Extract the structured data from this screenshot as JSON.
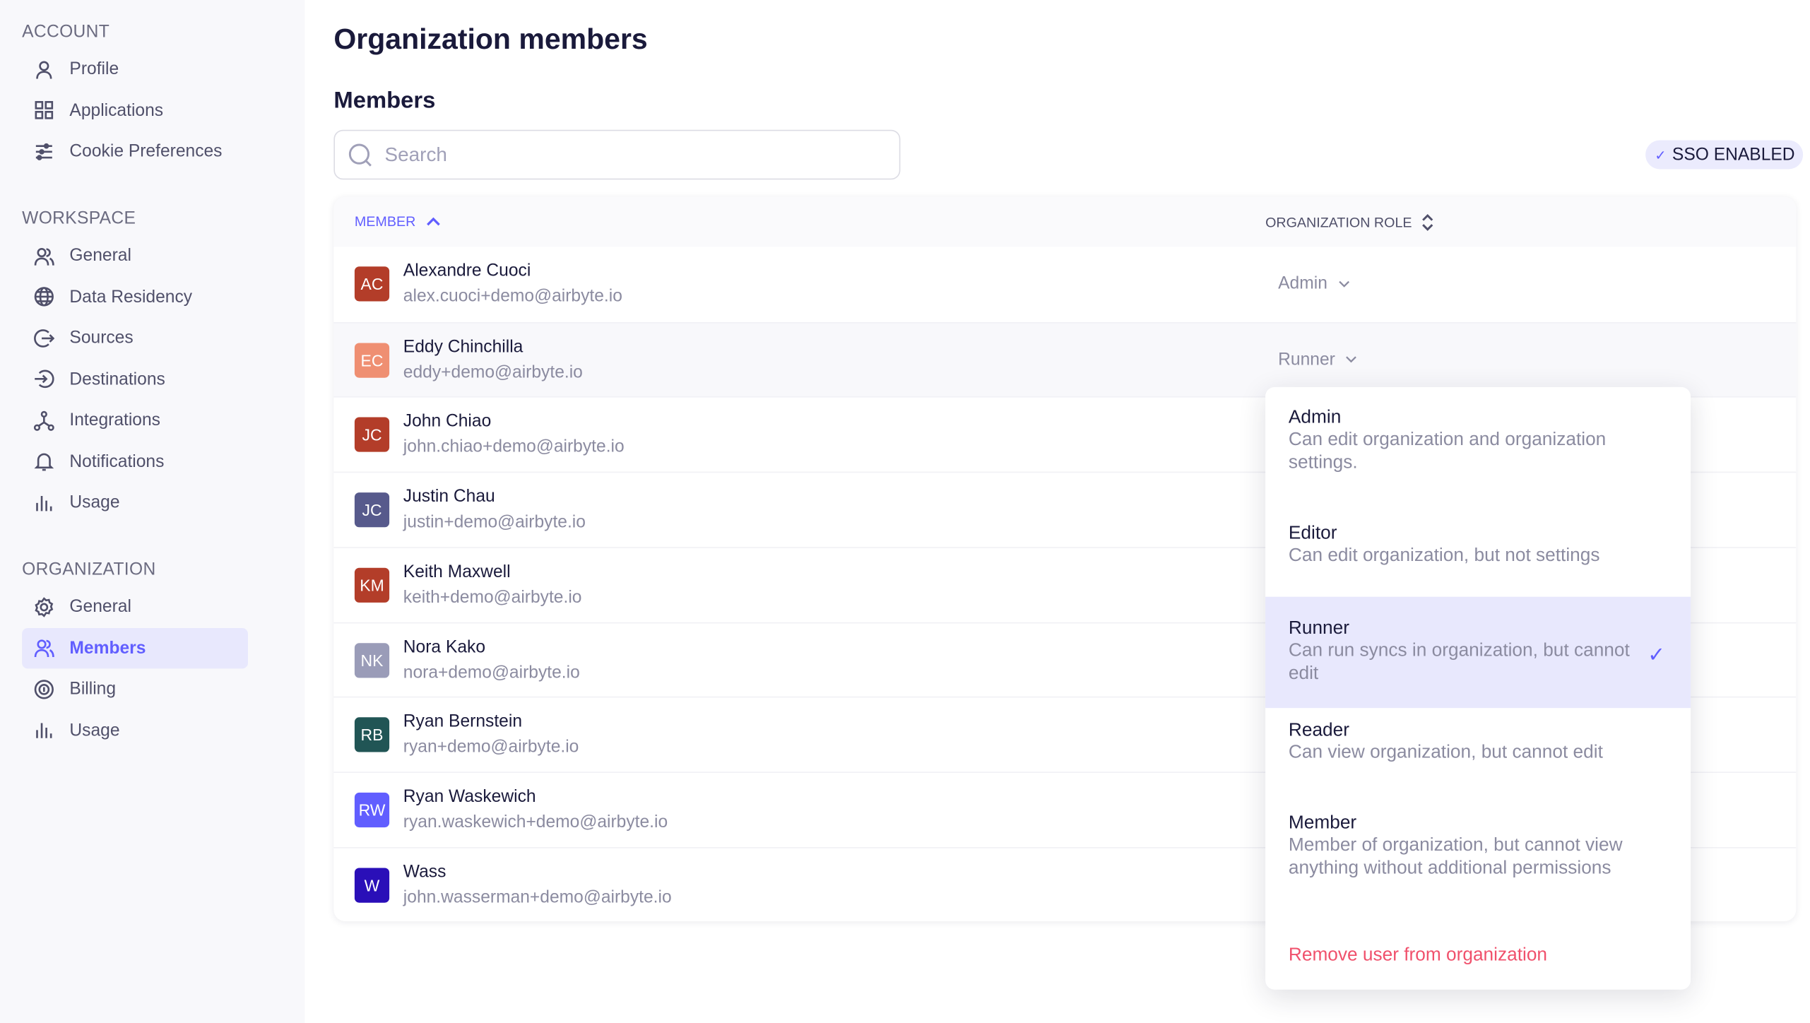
{
  "sidebar": {
    "sections": [
      {
        "title": "ACCOUNT",
        "items": [
          {
            "label": "Profile",
            "icon": "user-icon"
          },
          {
            "label": "Applications",
            "icon": "grid-icon"
          },
          {
            "label": "Cookie Preferences",
            "icon": "sliders-icon"
          }
        ]
      },
      {
        "title": "WORKSPACE",
        "items": [
          {
            "label": "General",
            "icon": "users-icon"
          },
          {
            "label": "Data Residency",
            "icon": "globe-icon"
          },
          {
            "label": "Sources",
            "icon": "source-icon"
          },
          {
            "label": "Destinations",
            "icon": "destination-icon"
          },
          {
            "label": "Integrations",
            "icon": "integrations-icon"
          },
          {
            "label": "Notifications",
            "icon": "bell-icon"
          },
          {
            "label": "Usage",
            "icon": "bar-chart-icon"
          }
        ]
      },
      {
        "title": "ORGANIZATION",
        "items": [
          {
            "label": "General",
            "icon": "gear-icon"
          },
          {
            "label": "Members",
            "icon": "users-icon",
            "active": true
          },
          {
            "label": "Billing",
            "icon": "billing-icon"
          },
          {
            "label": "Usage",
            "icon": "bar-chart-icon"
          }
        ]
      }
    ]
  },
  "page": {
    "title": "Organization members",
    "subtitle": "Members"
  },
  "search": {
    "placeholder": "Search",
    "value": ""
  },
  "sso_badge": "SSO ENABLED",
  "table": {
    "columns": {
      "member": "MEMBER",
      "role": "ORGANIZATION ROLE"
    },
    "rows": [
      {
        "initials": "AC",
        "color": "#b33d29",
        "name": "Alexandre Cuoci",
        "email": "alex.cuoci+demo@airbyte.io",
        "role": "Admin"
      },
      {
        "initials": "EC",
        "color": "#ef8f72",
        "name": "Eddy Chinchilla",
        "email": "eddy+demo@airbyte.io",
        "role": "Runner"
      },
      {
        "initials": "JC",
        "color": "#b33d29",
        "name": "John Chiao",
        "email": "john.chiao+demo@airbyte.io"
      },
      {
        "initials": "JC",
        "color": "#575a8c",
        "name": "Justin Chau",
        "email": "justin+demo@airbyte.io"
      },
      {
        "initials": "KM",
        "color": "#b33d29",
        "name": "Keith Maxwell",
        "email": "keith+demo@airbyte.io"
      },
      {
        "initials": "NK",
        "color": "#9a9cb8",
        "name": "Nora Kako",
        "email": "nora+demo@airbyte.io"
      },
      {
        "initials": "RB",
        "color": "#215555",
        "name": "Ryan Bernstein",
        "email": "ryan+demo@airbyte.io"
      },
      {
        "initials": "RW",
        "color": "#615eff",
        "name": "Ryan Waskewich",
        "email": "ryan.waskewich+demo@airbyte.io"
      },
      {
        "initials": "W",
        "color": "#2a0fb8",
        "name": "Wass",
        "email": "john.wasserman+demo@airbyte.io"
      }
    ]
  },
  "role_dropdown": {
    "options": [
      {
        "name": "Admin",
        "description": "Can edit organization and organization settings."
      },
      {
        "name": "Editor",
        "description": "Can edit organization, but not settings"
      },
      {
        "name": "Runner",
        "description": "Can run syncs in organization, but cannot edit",
        "selected": true
      },
      {
        "name": "Reader",
        "description": "Can view organization, but cannot edit"
      },
      {
        "name": "Member",
        "description": "Member of organization, but cannot view anything without additional permissions"
      }
    ],
    "remove_label": "Remove user from organization"
  },
  "colors": {
    "accent": "#615eff",
    "danger": "#f0516c",
    "text": "#1a1a3b",
    "sidebar_bg": "#f8f8fb"
  }
}
